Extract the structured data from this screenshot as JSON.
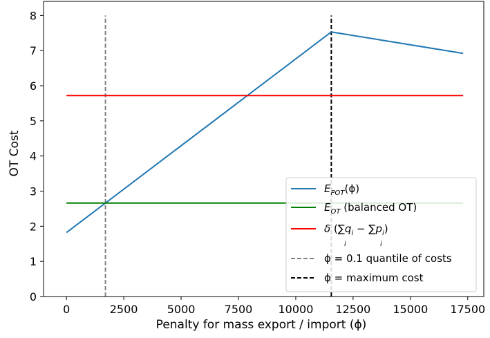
{
  "chart_data": {
    "type": "line",
    "xlabel": "Penalty for mass export / import (ϕ)",
    "ylabel": "OT Cost",
    "xlim": [
      -1000,
      18200
    ],
    "ylim": [
      0,
      8.4
    ],
    "xticks": [
      0,
      2500,
      5000,
      7500,
      10000,
      12500,
      15000,
      17500
    ],
    "yticks": [
      0,
      1,
      2,
      3,
      4,
      5,
      6,
      7,
      8
    ],
    "grid": false,
    "legend_position": "lower-right",
    "series": [
      {
        "key": "epot",
        "name": "E_POT(ϕ)",
        "color": "#1f77b4",
        "style": "solid",
        "x": [
          0,
          11550,
          17300
        ],
        "y": [
          1.82,
          7.53,
          6.92
        ]
      },
      {
        "key": "eot",
        "name": "E_OT (balanced OT)",
        "color": "#008000",
        "style": "solid",
        "x": [
          0,
          17300
        ],
        "y": [
          2.66,
          2.66
        ]
      },
      {
        "key": "delta",
        "name": "δ (∑qᵢ − ∑pᵢ)",
        "color": "#ff0000",
        "style": "solid",
        "x": [
          0,
          17300
        ],
        "y": [
          5.72,
          5.72
        ]
      }
    ],
    "vlines": [
      {
        "key": "quantile",
        "name": "ϕ = 0.1 quantile of costs",
        "color": "#808080",
        "style": "dashed",
        "x": 1700,
        "ymin": 0,
        "ymax": 8
      },
      {
        "key": "max",
        "name": "ϕ = maximum cost",
        "color": "#000000",
        "style": "dashed",
        "x": 11550,
        "ymin": 0,
        "ymax": 8
      }
    ]
  },
  "legend": {
    "epot_main": "E",
    "epot_sub": "POT",
    "epot_rest": "(ϕ)",
    "eot_main": "E",
    "eot_sub": "OT",
    "eot_rest": " (balanced OT)",
    "delta_sym": "δ",
    "delta_open": " (",
    "sum_sym": "∑",
    "delta_q": "q",
    "delta_minus": " − ",
    "delta_p": "p",
    "delta_close": ")",
    "sub_i": "i",
    "quantile_label": "ϕ = 0.1 quantile of costs",
    "max_label": "ϕ = maximum cost"
  }
}
